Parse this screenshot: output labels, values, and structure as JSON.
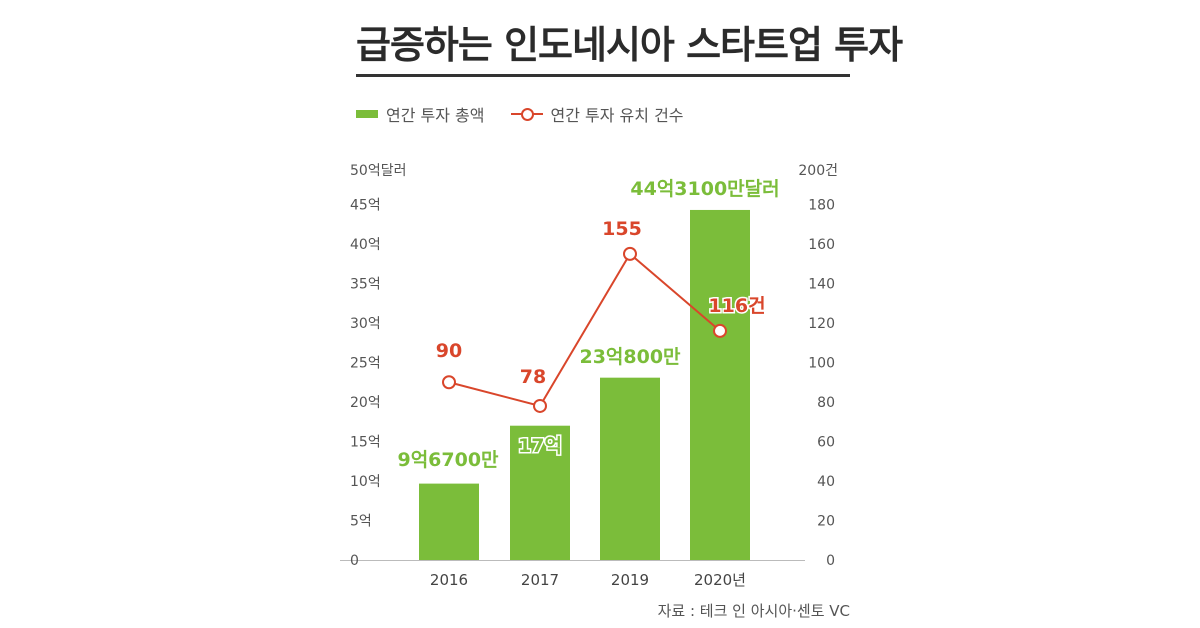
{
  "title": "급증하는 인도네시아 스타트업 투자",
  "legend": {
    "bar_label": "연간 투자 총액",
    "line_label": "연간 투자 유치 건수"
  },
  "source": "자료 : 테크 인 아시아·센토 VC",
  "colors": {
    "bar": "#7bbd3a",
    "bar_label": "#7bbd3a",
    "line": "#d9462b",
    "axis": "#555555"
  },
  "chart_data": {
    "type": "bar",
    "categories": [
      "2016",
      "2017",
      "2019",
      "2020년"
    ],
    "series": [
      {
        "name": "연간 투자 총액",
        "type": "bar",
        "axis": "left",
        "values": [
          9.67,
          17,
          23.08,
          44.31
        ],
        "labels": [
          "9억6700만",
          "17억",
          "23억800만",
          "44억3100만달러"
        ]
      },
      {
        "name": "연간 투자 유치 건수",
        "type": "line",
        "axis": "right",
        "values": [
          90,
          78,
          155,
          116
        ],
        "labels": [
          "90",
          "78",
          "155",
          "116건"
        ]
      }
    ],
    "left_axis": {
      "unit_label": "50억달러",
      "ylim": [
        0,
        50
      ],
      "ticks": [
        {
          "value": 0,
          "label": "0"
        },
        {
          "value": 5,
          "label": "5억"
        },
        {
          "value": 10,
          "label": "10억"
        },
        {
          "value": 15,
          "label": "15억"
        },
        {
          "value": 20,
          "label": "20억"
        },
        {
          "value": 25,
          "label": "25억"
        },
        {
          "value": 30,
          "label": "30억"
        },
        {
          "value": 35,
          "label": "35억"
        },
        {
          "value": 40,
          "label": "40억"
        },
        {
          "value": 45,
          "label": "45억"
        }
      ]
    },
    "right_axis": {
      "unit_label": "200건",
      "ylim": [
        0,
        200
      ],
      "ticks": [
        {
          "value": 0,
          "label": "0"
        },
        {
          "value": 20,
          "label": "20"
        },
        {
          "value": 40,
          "label": "40"
        },
        {
          "value": 60,
          "label": "60"
        },
        {
          "value": 80,
          "label": "80"
        },
        {
          "value": 100,
          "label": "100"
        },
        {
          "value": 120,
          "label": "120"
        },
        {
          "value": 140,
          "label": "140"
        },
        {
          "value": 160,
          "label": "160"
        },
        {
          "value": 180,
          "label": "180"
        }
      ]
    },
    "grid": false
  }
}
